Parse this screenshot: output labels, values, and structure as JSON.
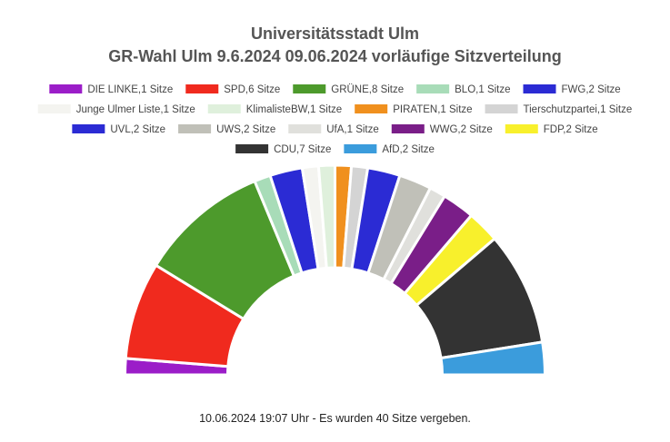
{
  "chart_data": {
    "type": "pie",
    "subtype": "parliament-semicircle",
    "title": "Universitätsstadt Ulm",
    "subtitle": "GR-Wahl Ulm 9.6.2024 09.06.2024 vorläufige Sitzverteilung",
    "total_seats": 40,
    "legend_position": "top",
    "footer": "10.06.2024 19:07 Uhr - Es wurden 40 Sitze vergeben.",
    "series": [
      {
        "name": "DIE LINKE",
        "label": "DIE LINKE,1 Sitze",
        "value": 1,
        "color": "#9b1dc8"
      },
      {
        "name": "SPD",
        "label": "SPD,6 Sitze",
        "value": 6,
        "color": "#f02a1e"
      },
      {
        "name": "GRÜNE",
        "label": "GRÜNE,8 Sitze",
        "value": 8,
        "color": "#4d9a2c"
      },
      {
        "name": "BLO",
        "label": "BLO,1 Sitze",
        "value": 1,
        "color": "#a8dcb8"
      },
      {
        "name": "FWG",
        "label": "FWG,2 Sitze",
        "value": 2,
        "color": "#2b2bd4"
      },
      {
        "name": "Junge Ulmer Liste",
        "label": "Junge Ulmer Liste,1 Sitze",
        "value": 1,
        "color": "#f4f4f0"
      },
      {
        "name": "KlimalisteBW",
        "label": "KlimalisteBW,1 Sitze",
        "value": 1,
        "color": "#dff0dc"
      },
      {
        "name": "PIRATEN",
        "label": "PIRATEN,1 Sitze",
        "value": 1,
        "color": "#f0901e"
      },
      {
        "name": "Tierschutzpartei",
        "label": "Tierschutzpartei,1 Sitze",
        "value": 1,
        "color": "#d4d4d4"
      },
      {
        "name": "UVL",
        "label": "UVL,2 Sitze",
        "value": 2,
        "color": "#2b2bd4"
      },
      {
        "name": "UWS",
        "label": "UWS,2 Sitze",
        "value": 2,
        "color": "#c0c0b8"
      },
      {
        "name": "UfA",
        "label": "UfA,1 Sitze",
        "value": 1,
        "color": "#e0e0dc"
      },
      {
        "name": "WWG",
        "label": "WWG,2 Sitze",
        "value": 2,
        "color": "#7a1e88"
      },
      {
        "name": "FDP",
        "label": "FDP,2 Sitze",
        "value": 2,
        "color": "#f8f02c"
      },
      {
        "name": "CDU",
        "label": "CDU,7 Sitze",
        "value": 7,
        "color": "#333333"
      },
      {
        "name": "AfD",
        "label": "AfD,2 Sitze",
        "value": 2,
        "color": "#3b9cdc"
      }
    ],
    "legend_rows": [
      [
        0,
        1,
        2,
        3,
        4
      ],
      [
        5,
        6,
        7,
        8
      ],
      [
        9,
        10,
        11,
        12,
        13
      ],
      [
        14,
        15
      ]
    ]
  }
}
